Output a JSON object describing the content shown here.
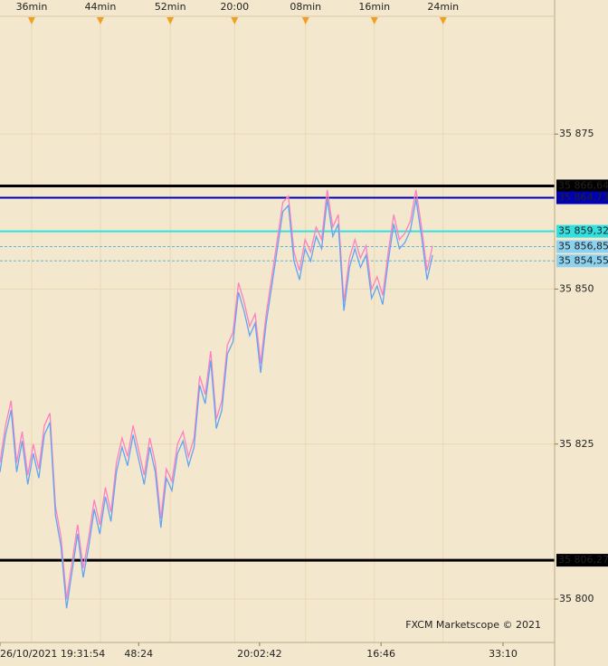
{
  "chart_data": {
    "type": "line",
    "annotation": "FXCM Marketscope © 2021",
    "xlim": [
      0,
      100
    ],
    "ylim": [
      35793,
      35894
    ],
    "grid": true,
    "yticks": [
      {
        "value": 35875,
        "label": "35 875"
      },
      {
        "value": 35850,
        "label": "35 850"
      },
      {
        "value": 35825,
        "label": "35 825"
      },
      {
        "value": 35800,
        "label": "35 800"
      }
    ],
    "top_xticks": [
      {
        "value": 5.7,
        "label": "36min"
      },
      {
        "value": 18.1,
        "label": "44min"
      },
      {
        "value": 30.7,
        "label": "52min"
      },
      {
        "value": 42.3,
        "label": "20:00"
      },
      {
        "value": 55.1,
        "label": "08min"
      },
      {
        "value": 67.5,
        "label": "16min"
      },
      {
        "value": 79.9,
        "label": "24min"
      }
    ],
    "xticks": [
      {
        "value": 0,
        "label": "26/10/2021 19:31:54"
      },
      {
        "value": 25,
        "label": "48:24"
      },
      {
        "value": 46.8,
        "label": "20:02:42"
      },
      {
        "value": 68.7,
        "label": "16:46"
      },
      {
        "value": 90.7,
        "label": "33:10"
      }
    ],
    "levels": [
      {
        "value": 35866.64,
        "label": "35 866,64",
        "color": "#000000",
        "text_color": "#ffffff",
        "dashed": false
      },
      {
        "value": 35864.73,
        "label": "35 864,73",
        "color": "#0000b4",
        "text_color": "#ffffff",
        "dashed": false
      },
      {
        "value": 35859.32,
        "label": "35 859,32",
        "color": "#33e0e0",
        "text_color": "#003040",
        "dashed": false
      },
      {
        "value": 35856.85,
        "label": "35 856,85",
        "color": "#8cd2f0",
        "text_color": "#003040",
        "dashed": true
      },
      {
        "value": 35854.55,
        "label": "35 854,55",
        "color": "#8cd2f0",
        "text_color": "#003040",
        "dashed": true
      },
      {
        "value": 35806.27,
        "label": "35 806,27",
        "color": "#000000",
        "text_color": "#ffffff",
        "dashed": false
      }
    ],
    "x": [
      0,
      1,
      2,
      3,
      4,
      5,
      6,
      7,
      8,
      9,
      10,
      11,
      12,
      13,
      14,
      15,
      16,
      17,
      18,
      19,
      20,
      21,
      22,
      23,
      24,
      25,
      26,
      27,
      28,
      29,
      30,
      31,
      32,
      33,
      34,
      35,
      36,
      37,
      38,
      39,
      40,
      41,
      42,
      43,
      44,
      45,
      46,
      47,
      48,
      49,
      50,
      51,
      52,
      53,
      54,
      55,
      56,
      57,
      58,
      59,
      60,
      61,
      62,
      63,
      64,
      65,
      66,
      67,
      68,
      69,
      70,
      71,
      72,
      73,
      74,
      75,
      76,
      77,
      78
    ],
    "series": [
      {
        "color": "#ff7fc0",
        "values": [
          35822,
          35828,
          35832,
          35822,
          35827,
          35820,
          35825,
          35821,
          35828,
          35830,
          35815,
          35810,
          35800,
          35806,
          35812,
          35805,
          35810,
          35816,
          35812,
          35818,
          35814,
          35822,
          35826,
          35823,
          35828,
          35824,
          35820,
          35826,
          35822,
          35813,
          35821,
          35819,
          35825,
          35827,
          35823,
          35826,
          35836,
          35833,
          35840,
          35829,
          35832,
          35841,
          35843,
          35851,
          35848,
          35844,
          35846,
          35838,
          35846,
          35852,
          35858,
          35864,
          35865,
          35856,
          35853,
          35858,
          35856,
          35860,
          35858,
          35866,
          35860,
          35862,
          35848,
          35855,
          35858,
          35855,
          35857,
          35850,
          35852,
          35849,
          35856,
          35862,
          35858,
          35859,
          35861,
          35866,
          35860,
          35853,
          35857
        ]
      },
      {
        "color": "#62a4f2",
        "values": [
          35820.5,
          35826.5,
          35830.5,
          35820.5,
          35825.5,
          35818.5,
          35823.5,
          35819.5,
          35826.5,
          35828.5,
          35813.5,
          35808.5,
          35798.5,
          35804.5,
          35810.5,
          35803.5,
          35808.5,
          35814.5,
          35810.5,
          35816.5,
          35812.5,
          35820.5,
          35824.5,
          35821.5,
          35826.5,
          35822.5,
          35818.5,
          35824.5,
          35820.5,
          35811.5,
          35819.5,
          35817.5,
          35823.5,
          35825.5,
          35821.5,
          35824.5,
          35834.5,
          35831.5,
          35838.5,
          35827.5,
          35830.5,
          35839.5,
          35841.5,
          35849.5,
          35846.5,
          35842.5,
          35844.5,
          35836.5,
          35844.5,
          35850.5,
          35856.5,
          35862.5,
          35863.5,
          35854.5,
          35851.5,
          35856.5,
          35854.5,
          35858.5,
          35856.5,
          35864.5,
          35858.5,
          35860.5,
          35846.5,
          35853.5,
          35856.5,
          35853.5,
          35855.5,
          35848.5,
          35850.5,
          35847.5,
          35854.5,
          35860.5,
          35856.5,
          35857.5,
          35859.5,
          35864.5,
          35858.5,
          35851.5,
          35855.5
        ]
      }
    ]
  }
}
